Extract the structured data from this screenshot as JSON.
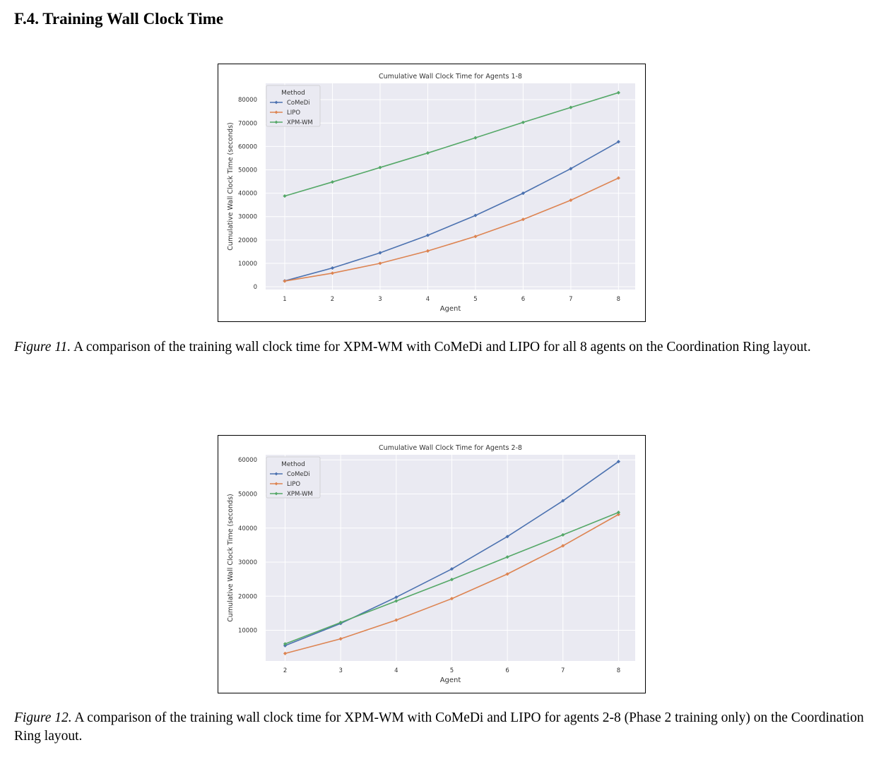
{
  "section": {
    "heading": "F.4. Training Wall Clock Time"
  },
  "figures": [
    {
      "caption_label": "Figure 11.",
      "caption_text": " A comparison of the training wall clock time for XPM-WM with CoMeDi and LIPO for all 8 agents on the Coordination Ring layout."
    },
    {
      "caption_label": "Figure 12.",
      "caption_text": " A comparison of the training wall clock time for XPM-WM with CoMeDi and LIPO for agents 2-8 (Phase 2 training only) on the Coordination Ring layout."
    }
  ],
  "chart_data": [
    {
      "type": "line",
      "title": "Cumulative Wall Clock Time for Agents 1-8",
      "xlabel": "Agent",
      "ylabel": "Cumulative Wall Clock Time (seconds)",
      "x": [
        1,
        2,
        3,
        4,
        5,
        6,
        7,
        8
      ],
      "xlim": [
        0.6,
        8.35
      ],
      "ylim": [
        -1200,
        87000
      ],
      "yticks": [
        0,
        10000,
        20000,
        30000,
        40000,
        50000,
        60000,
        70000,
        80000
      ],
      "grid": true,
      "legend": {
        "title": "Method",
        "placement": "top-left"
      },
      "series": [
        {
          "name": "CoMeDi",
          "color": "#4c72b0",
          "values": [
            2500,
            8000,
            14500,
            22000,
            30500,
            40000,
            50500,
            62000
          ]
        },
        {
          "name": "LIPO",
          "color": "#dd8452",
          "values": [
            2400,
            5800,
            10000,
            15300,
            21500,
            28800,
            37000,
            46500
          ]
        },
        {
          "name": "XPM-WM",
          "color": "#55a868",
          "values": [
            38800,
            44800,
            51000,
            57200,
            63700,
            70300,
            76700,
            83000
          ]
        }
      ]
    },
    {
      "type": "line",
      "title": "Cumulative Wall Clock Time for Agents 2-8",
      "xlabel": "Agent",
      "ylabel": "Cumulative Wall Clock Time (seconds)",
      "x": [
        2,
        3,
        4,
        5,
        6,
        7,
        8
      ],
      "xlim": [
        1.65,
        8.3
      ],
      "ylim": [
        1000,
        61500
      ],
      "yticks": [
        10000,
        20000,
        30000,
        40000,
        50000,
        60000
      ],
      "grid": true,
      "legend": {
        "title": "Method",
        "placement": "top-left"
      },
      "series": [
        {
          "name": "CoMeDi",
          "color": "#4c72b0",
          "values": [
            5500,
            12000,
            19700,
            28000,
            37500,
            48000,
            59500
          ]
        },
        {
          "name": "LIPO",
          "color": "#dd8452",
          "values": [
            3200,
            7500,
            13000,
            19300,
            26500,
            34800,
            44000
          ]
        },
        {
          "name": "XPM-WM",
          "color": "#55a868",
          "values": [
            6000,
            12300,
            18600,
            24900,
            31500,
            38000,
            44600
          ]
        }
      ]
    }
  ]
}
